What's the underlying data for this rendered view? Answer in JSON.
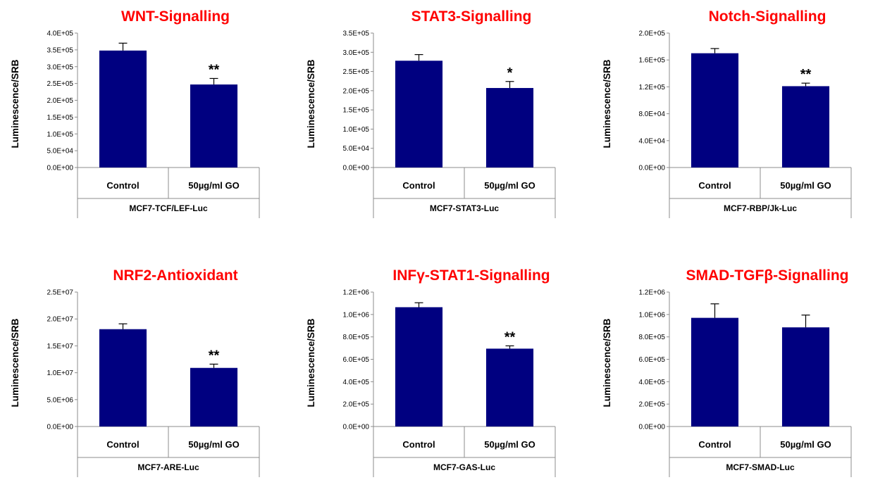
{
  "colors": {
    "title": "#ff0000",
    "bar": "#000080",
    "axis": "#8c8c8c",
    "text": "#000000"
  },
  "chart_data": [
    {
      "type": "bar",
      "title": "WNT-Signalling",
      "ylabel": "Luminescence/SRB",
      "group_label": "MCF7-TCF/LEF-Luc",
      "categories": [
        "Control",
        "50µg/ml GO"
      ],
      "values": [
        348000,
        247000
      ],
      "errors": [
        22000,
        18000
      ],
      "significance": [
        "",
        "**"
      ],
      "ylim": [
        0,
        400000
      ],
      "yticks": [
        0,
        50000,
        100000,
        150000,
        200000,
        250000,
        300000,
        350000,
        400000
      ],
      "ytick_labels": [
        "0.0E+00",
        "5.0E+04",
        "1.0E+05",
        "1.5E+05",
        "2.0E+05",
        "2.5E+05",
        "3.0E+05",
        "3.5E+05",
        "4.0E+05"
      ]
    },
    {
      "type": "bar",
      "title": "STAT3-Signalling",
      "ylabel": "Luminescence/SRB",
      "group_label": "MCF7-STAT3-Luc",
      "categories": [
        "Control",
        "50µg/ml GO"
      ],
      "values": [
        278000,
        207000
      ],
      "errors": [
        16000,
        17000
      ],
      "significance": [
        "",
        "*"
      ],
      "ylim": [
        0,
        350000
      ],
      "yticks": [
        0,
        50000,
        100000,
        150000,
        200000,
        250000,
        300000,
        350000
      ],
      "ytick_labels": [
        "0.0E+00",
        "5.0E+04",
        "1.0E+05",
        "1.5E+05",
        "2.0E+05",
        "2.5E+05",
        "3.0E+05",
        "3.5E+05"
      ]
    },
    {
      "type": "bar",
      "title": "Notch-Signalling",
      "ylabel": "Luminescence/SRB",
      "group_label": "MCF7-RBP/Jk-Luc",
      "categories": [
        "Control",
        "50µg/ml GO"
      ],
      "values": [
        170000,
        121000
      ],
      "errors": [
        7000,
        4500
      ],
      "significance": [
        "",
        "**"
      ],
      "ylim": [
        0,
        200000
      ],
      "yticks": [
        0,
        40000,
        80000,
        120000,
        160000,
        200000
      ],
      "ytick_labels": [
        "0.0E+00",
        "4.0E+04",
        "8.0E+04",
        "1.2E+05",
        "1.6E+05",
        "2.0E+05"
      ]
    },
    {
      "type": "bar",
      "title": "NRF2-Antioxidant",
      "ylabel": "Luminescence/SRB",
      "group_label": "MCF7-ARE-Luc",
      "categories": [
        "Control",
        "50µg/ml GO"
      ],
      "values": [
        18100000,
        10900000
      ],
      "errors": [
        1000000,
        700000
      ],
      "significance": [
        "",
        "**"
      ],
      "ylim": [
        0,
        25000000
      ],
      "yticks": [
        0,
        5000000,
        10000000,
        15000000,
        20000000,
        25000000
      ],
      "ytick_labels": [
        "0.0E+00",
        "5.0E+06",
        "1.0E+07",
        "1.5E+07",
        "2.0E+07",
        "2.5E+07"
      ]
    },
    {
      "type": "bar",
      "title": "INFγ-STAT1-Signalling",
      "ylabel": "Luminescence/SRB",
      "group_label": "MCF7-GAS-Luc",
      "categories": [
        "Control",
        "50µg/ml GO"
      ],
      "values": [
        1065000,
        695000
      ],
      "errors": [
        40000,
        25000
      ],
      "significance": [
        "",
        "**"
      ],
      "ylim": [
        0,
        1200000
      ],
      "yticks": [
        0,
        200000,
        400000,
        600000,
        800000,
        1000000,
        1200000
      ],
      "ytick_labels": [
        "0.0E+00",
        "2.0E+05",
        "4.0E+05",
        "6.0E+05",
        "8.0E+05",
        "1.0E+06",
        "1.2E+06"
      ]
    },
    {
      "type": "bar",
      "title": "SMAD-TGFβ-Signalling",
      "ylabel": "Luminescence/SRB",
      "group_label": "MCF7-SMAD-Luc",
      "categories": [
        "Control",
        "50µg/ml GO"
      ],
      "values": [
        970000,
        885000
      ],
      "errors": [
        125000,
        110000
      ],
      "significance": [
        "",
        ""
      ],
      "ylim": [
        0,
        1200000
      ],
      "yticks": [
        0,
        200000,
        400000,
        600000,
        800000,
        1000000,
        1200000
      ],
      "ytick_labels": [
        "0.0E+00",
        "2.0E+05",
        "4.0E+05",
        "6.0E+05",
        "8.0E+05",
        "1.0E+06",
        "1.2E+06"
      ]
    }
  ]
}
